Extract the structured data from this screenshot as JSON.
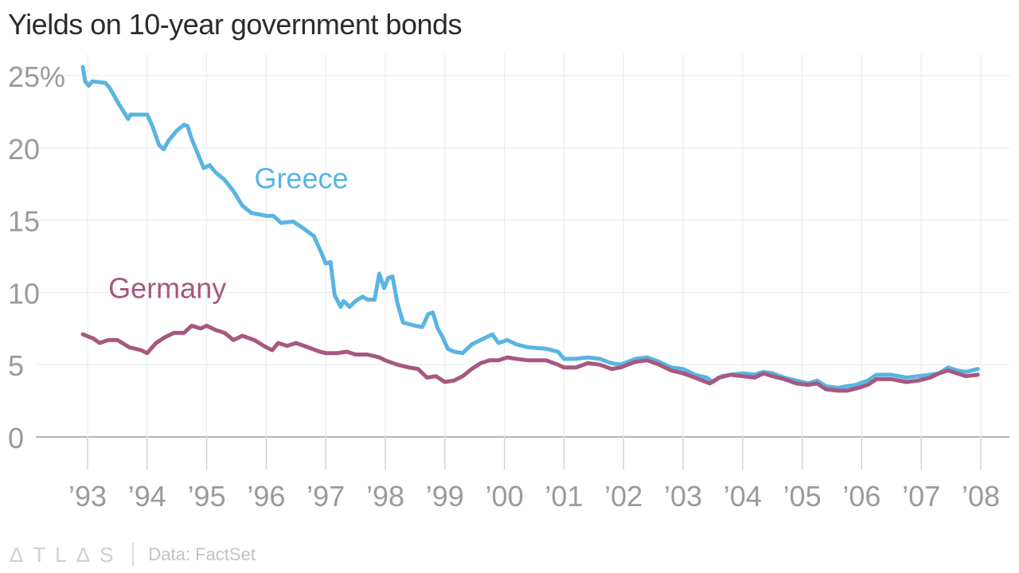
{
  "title": "Yields on 10-year government bonds",
  "footer": {
    "logo": "ΔTLΔS",
    "source": "Data: FactSet"
  },
  "chart_data": {
    "type": "line",
    "title": "Yields on 10-year government bonds",
    "xlim": [
      1992.85,
      2008.05
    ],
    "ylim": [
      0,
      26
    ],
    "y_ticks": [
      {
        "value": 0,
        "label": "0"
      },
      {
        "value": 5,
        "label": "5"
      },
      {
        "value": 10,
        "label": "10"
      },
      {
        "value": 15,
        "label": "15"
      },
      {
        "value": 20,
        "label": "20"
      },
      {
        "value": 25,
        "label": "25%"
      }
    ],
    "x_ticks": [
      {
        "value": 1993,
        "label": "’93"
      },
      {
        "value": 1994,
        "label": "’94"
      },
      {
        "value": 1995,
        "label": "’95"
      },
      {
        "value": 1996,
        "label": "’96"
      },
      {
        "value": 1997,
        "label": "’97"
      },
      {
        "value": 1998,
        "label": "’98"
      },
      {
        "value": 1999,
        "label": "’99"
      },
      {
        "value": 2000,
        "label": "’00"
      },
      {
        "value": 2001,
        "label": "’01"
      },
      {
        "value": 2002,
        "label": "’02"
      },
      {
        "value": 2003,
        "label": "’03"
      },
      {
        "value": 2004,
        "label": "’04"
      },
      {
        "value": 2005,
        "label": "’05"
      },
      {
        "value": 2006,
        "label": "’06"
      },
      {
        "value": 2007,
        "label": "’07"
      },
      {
        "value": 2008,
        "label": "’08"
      }
    ],
    "grid": true,
    "series": [
      {
        "name": "Greece",
        "color": "#5ab4e2",
        "label_at": [
          1995.8,
          17.2
        ],
        "points": [
          [
            1992.92,
            25.6
          ],
          [
            1992.96,
            24.6
          ],
          [
            1993.02,
            24.3
          ],
          [
            1993.08,
            24.6
          ],
          [
            1993.3,
            24.5
          ],
          [
            1993.38,
            24.1
          ],
          [
            1993.5,
            23.2
          ],
          [
            1993.62,
            22.4
          ],
          [
            1993.68,
            22.0
          ],
          [
            1993.72,
            22.3
          ],
          [
            1994.0,
            22.3
          ],
          [
            1994.08,
            21.6
          ],
          [
            1994.2,
            20.2
          ],
          [
            1994.28,
            19.9
          ],
          [
            1994.36,
            20.5
          ],
          [
            1994.5,
            21.2
          ],
          [
            1994.62,
            21.6
          ],
          [
            1994.68,
            21.5
          ],
          [
            1994.75,
            20.6
          ],
          [
            1994.85,
            19.6
          ],
          [
            1994.95,
            18.6
          ],
          [
            1995.05,
            18.8
          ],
          [
            1995.15,
            18.3
          ],
          [
            1995.3,
            17.8
          ],
          [
            1995.45,
            17.0
          ],
          [
            1995.6,
            16.0
          ],
          [
            1995.75,
            15.5
          ],
          [
            1996.0,
            15.3
          ],
          [
            1996.12,
            15.3
          ],
          [
            1996.25,
            14.8
          ],
          [
            1996.45,
            14.9
          ],
          [
            1996.6,
            14.5
          ],
          [
            1996.8,
            13.9
          ],
          [
            1996.92,
            12.8
          ],
          [
            1997.0,
            12.0
          ],
          [
            1997.08,
            12.1
          ],
          [
            1997.15,
            9.8
          ],
          [
            1997.25,
            9.0
          ],
          [
            1997.3,
            9.4
          ],
          [
            1997.4,
            9.0
          ],
          [
            1997.5,
            9.4
          ],
          [
            1997.62,
            9.7
          ],
          [
            1997.7,
            9.5
          ],
          [
            1997.82,
            9.5
          ],
          [
            1997.9,
            11.3
          ],
          [
            1997.98,
            10.3
          ],
          [
            1998.05,
            11.0
          ],
          [
            1998.12,
            11.1
          ],
          [
            1998.2,
            9.3
          ],
          [
            1998.3,
            7.9
          ],
          [
            1998.5,
            7.7
          ],
          [
            1998.62,
            7.6
          ],
          [
            1998.72,
            8.5
          ],
          [
            1998.8,
            8.6
          ],
          [
            1998.88,
            7.5
          ],
          [
            1998.95,
            7.0
          ],
          [
            1999.05,
            6.1
          ],
          [
            1999.15,
            5.9
          ],
          [
            1999.3,
            5.8
          ],
          [
            1999.45,
            6.4
          ],
          [
            1999.6,
            6.7
          ],
          [
            1999.8,
            7.1
          ],
          [
            1999.9,
            6.5
          ],
          [
            2000.05,
            6.7
          ],
          [
            2000.2,
            6.4
          ],
          [
            2000.4,
            6.2
          ],
          [
            2000.7,
            6.1
          ],
          [
            2000.9,
            5.9
          ],
          [
            2001.0,
            5.4
          ],
          [
            2001.2,
            5.4
          ],
          [
            2001.4,
            5.5
          ],
          [
            2001.6,
            5.4
          ],
          [
            2001.8,
            5.1
          ],
          [
            2001.95,
            5.0
          ],
          [
            2002.2,
            5.4
          ],
          [
            2002.4,
            5.5
          ],
          [
            2002.6,
            5.2
          ],
          [
            2002.8,
            4.8
          ],
          [
            2003.0,
            4.7
          ],
          [
            2003.2,
            4.3
          ],
          [
            2003.4,
            4.1
          ],
          [
            2003.5,
            3.8
          ],
          [
            2003.65,
            4.2
          ],
          [
            2003.8,
            4.3
          ],
          [
            2004.0,
            4.4
          ],
          [
            2004.2,
            4.3
          ],
          [
            2004.35,
            4.5
          ],
          [
            2004.5,
            4.4
          ],
          [
            2004.7,
            4.1
          ],
          [
            2004.9,
            3.9
          ],
          [
            2005.1,
            3.7
          ],
          [
            2005.25,
            3.9
          ],
          [
            2005.4,
            3.5
          ],
          [
            2005.6,
            3.4
          ],
          [
            2005.75,
            3.5
          ],
          [
            2005.9,
            3.6
          ],
          [
            2006.1,
            3.9
          ],
          [
            2006.25,
            4.3
          ],
          [
            2006.5,
            4.3
          ],
          [
            2006.75,
            4.1
          ],
          [
            2006.95,
            4.2
          ],
          [
            2007.15,
            4.3
          ],
          [
            2007.3,
            4.4
          ],
          [
            2007.45,
            4.8
          ],
          [
            2007.6,
            4.6
          ],
          [
            2007.75,
            4.5
          ],
          [
            2007.95,
            4.7
          ]
        ]
      },
      {
        "name": "Germany",
        "color": "#a6587f",
        "label_at": [
          1993.35,
          9.6
        ],
        "points": [
          [
            1992.92,
            7.1
          ],
          [
            1993.1,
            6.8
          ],
          [
            1993.2,
            6.5
          ],
          [
            1993.35,
            6.7
          ],
          [
            1993.5,
            6.7
          ],
          [
            1993.7,
            6.2
          ],
          [
            1993.9,
            6.0
          ],
          [
            1994.0,
            5.8
          ],
          [
            1994.15,
            6.5
          ],
          [
            1994.3,
            6.9
          ],
          [
            1994.45,
            7.2
          ],
          [
            1994.62,
            7.2
          ],
          [
            1994.75,
            7.7
          ],
          [
            1994.9,
            7.5
          ],
          [
            1995.0,
            7.7
          ],
          [
            1995.15,
            7.4
          ],
          [
            1995.3,
            7.2
          ],
          [
            1995.45,
            6.7
          ],
          [
            1995.6,
            7.0
          ],
          [
            1995.8,
            6.7
          ],
          [
            1996.0,
            6.2
          ],
          [
            1996.1,
            6.0
          ],
          [
            1996.2,
            6.5
          ],
          [
            1996.35,
            6.3
          ],
          [
            1996.5,
            6.5
          ],
          [
            1996.7,
            6.2
          ],
          [
            1996.9,
            5.9
          ],
          [
            1997.0,
            5.8
          ],
          [
            1997.2,
            5.8
          ],
          [
            1997.35,
            5.9
          ],
          [
            1997.5,
            5.7
          ],
          [
            1997.7,
            5.7
          ],
          [
            1997.9,
            5.5
          ],
          [
            1998.0,
            5.3
          ],
          [
            1998.2,
            5.0
          ],
          [
            1998.4,
            4.8
          ],
          [
            1998.55,
            4.7
          ],
          [
            1998.7,
            4.1
          ],
          [
            1998.85,
            4.2
          ],
          [
            1999.0,
            3.8
          ],
          [
            1999.15,
            3.9
          ],
          [
            1999.3,
            4.2
          ],
          [
            1999.45,
            4.7
          ],
          [
            1999.6,
            5.1
          ],
          [
            1999.75,
            5.3
          ],
          [
            1999.9,
            5.3
          ],
          [
            2000.05,
            5.5
          ],
          [
            2000.2,
            5.4
          ],
          [
            2000.4,
            5.3
          ],
          [
            2000.7,
            5.3
          ],
          [
            2000.9,
            5.0
          ],
          [
            2001.0,
            4.8
          ],
          [
            2001.2,
            4.8
          ],
          [
            2001.4,
            5.1
          ],
          [
            2001.6,
            5.0
          ],
          [
            2001.8,
            4.7
          ],
          [
            2001.95,
            4.8
          ],
          [
            2002.2,
            5.2
          ],
          [
            2002.4,
            5.3
          ],
          [
            2002.6,
            5.0
          ],
          [
            2002.8,
            4.6
          ],
          [
            2003.0,
            4.4
          ],
          [
            2003.2,
            4.1
          ],
          [
            2003.45,
            3.7
          ],
          [
            2003.6,
            4.1
          ],
          [
            2003.8,
            4.3
          ],
          [
            2004.0,
            4.2
          ],
          [
            2004.2,
            4.1
          ],
          [
            2004.35,
            4.4
          ],
          [
            2004.5,
            4.2
          ],
          [
            2004.7,
            4.0
          ],
          [
            2004.9,
            3.7
          ],
          [
            2005.1,
            3.6
          ],
          [
            2005.25,
            3.7
          ],
          [
            2005.4,
            3.3
          ],
          [
            2005.6,
            3.2
          ],
          [
            2005.75,
            3.2
          ],
          [
            2005.95,
            3.4
          ],
          [
            2006.1,
            3.6
          ],
          [
            2006.25,
            4.0
          ],
          [
            2006.5,
            4.0
          ],
          [
            2006.75,
            3.8
          ],
          [
            2006.95,
            3.9
          ],
          [
            2007.15,
            4.1
          ],
          [
            2007.3,
            4.4
          ],
          [
            2007.45,
            4.6
          ],
          [
            2007.6,
            4.4
          ],
          [
            2007.75,
            4.2
          ],
          [
            2007.95,
            4.3
          ]
        ]
      }
    ]
  }
}
